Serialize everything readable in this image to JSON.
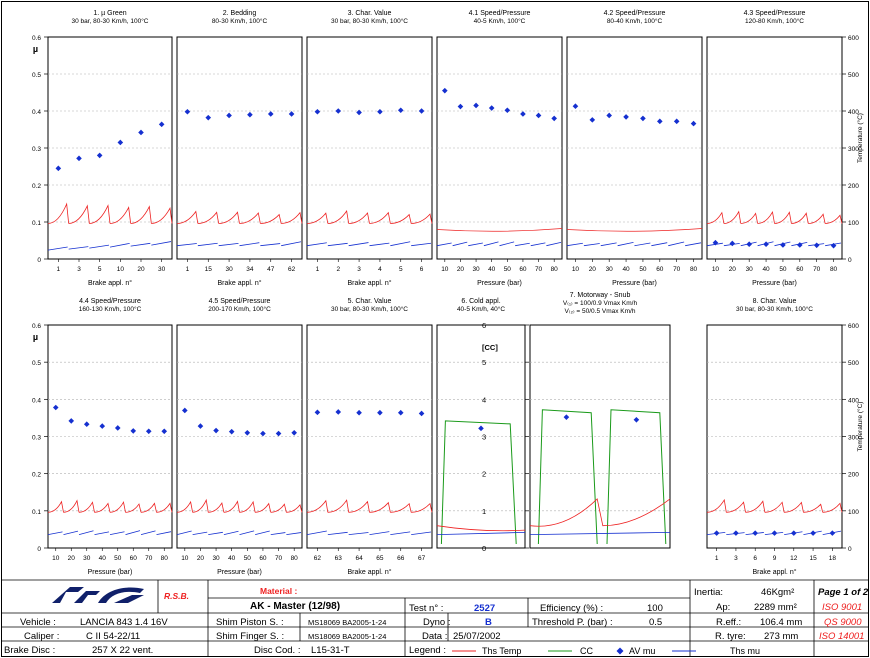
{
  "chart_data": [
    {
      "type": "scatter",
      "title": "1. µ Green",
      "subtitle": "30 bar, 80-30 Km/h, 100°C",
      "xlabel": "Brake appl. n°",
      "x_ticks": [
        "1",
        "3",
        "5",
        "10",
        "20",
        "30"
      ],
      "values": [
        0.245,
        0.272,
        0.28,
        0.315,
        0.342,
        0.364
      ]
    },
    {
      "type": "scatter",
      "title": "2. Bedding",
      "subtitle": "80-30 Km/h, 100°C",
      "xlabel": "Brake appl. n°",
      "x_ticks": [
        "1",
        "15",
        "30",
        "34",
        "47",
        "62"
      ],
      "values": [
        0.398,
        0.382,
        0.388,
        0.39,
        0.392,
        0.392
      ]
    },
    {
      "type": "scatter",
      "title": "3. Char. Value",
      "subtitle": "30 bar, 80-30 Km/h, 100°C",
      "xlabel": "Brake appl. n°",
      "x_ticks": [
        "1",
        "2",
        "3",
        "4",
        "5",
        "6"
      ],
      "values": [
        0.398,
        0.4,
        0.396,
        0.398,
        0.402,
        0.4
      ]
    },
    {
      "type": "scatter",
      "title": "4.1 Speed/Pressure",
      "subtitle": "40-5 Km/h, 100°C",
      "xlabel": "Pressure (bar)",
      "x_ticks": [
        "10",
        "20",
        "30",
        "40",
        "50",
        "60",
        "70",
        "80"
      ],
      "values": [
        0.455,
        0.412,
        0.415,
        0.408,
        0.402,
        0.392,
        0.388,
        0.38
      ]
    },
    {
      "type": "scatter",
      "title": "4.2 Speed/Pressure",
      "subtitle": "80-40 Km/h, 100°C",
      "xlabel": "Pressure (bar)",
      "x_ticks": [
        "10",
        "20",
        "30",
        "40",
        "50",
        "60",
        "70",
        "80"
      ],
      "values": [
        0.413,
        0.376,
        0.388,
        0.384,
        0.38,
        0.372,
        0.372,
        0.366
      ]
    },
    {
      "type": "scatter",
      "title": "4.3 Speed/Pressure",
      "subtitle": "120-80 Km/h, 100°C",
      "xlabel": "Pressure (bar)",
      "x_ticks": [
        "10",
        "20",
        "30",
        "40",
        "50",
        "60",
        "70",
        "80"
      ],
      "values": [
        0.044,
        0.042,
        0.04,
        0.04,
        0.038,
        0.038,
        0.037,
        0.036
      ]
    },
    {
      "type": "scatter",
      "title": "4.4 Speed/Pressure",
      "subtitle": "160-130 Km/h, 100°C",
      "xlabel": "Pressure (bar)",
      "x_ticks": [
        "10",
        "20",
        "30",
        "40",
        "50",
        "60",
        "70",
        "80"
      ],
      "values": [
        0.378,
        0.342,
        0.333,
        0.328,
        0.323,
        0.315,
        0.314,
        0.314
      ]
    },
    {
      "type": "scatter",
      "title": "4.5 Speed/Pressure",
      "subtitle": "200-170 Km/h, 100°C",
      "xlabel": "Pressure (bar)",
      "x_ticks": [
        "10",
        "20",
        "30",
        "40",
        "50",
        "60",
        "70",
        "80"
      ],
      "values": [
        0.37,
        0.328,
        0.316,
        0.313,
        0.31,
        0.308,
        0.308,
        0.31
      ]
    },
    {
      "type": "scatter",
      "title": "5. Char. Value",
      "subtitle": "30 bar, 80-30 Km/h, 100°C",
      "xlabel": "Brake appl. n°",
      "x_ticks": [
        "62",
        "63",
        "64",
        "65",
        "66",
        "67"
      ],
      "values": [
        0.365,
        0.366,
        0.364,
        0.364,
        0.364,
        0.362
      ]
    },
    {
      "type": "scatter",
      "title": "6. Cold appl.",
      "subtitle": "40-5 Km/h, 40°C",
      "xlabel": "",
      "x_ticks": [],
      "values": [
        0.322
      ]
    },
    {
      "type": "scatter",
      "title": "7. Motorway - Snub",
      "subtitle": "V₍₁₎ = 100/0.9 Vmax Km/h",
      "subtitle2": "V₍₂₎ = 50/0.5 Vmax Km/h",
      "xlabel": "",
      "x_ticks": [],
      "values": [
        0.352,
        0.345
      ]
    },
    {
      "type": "scatter",
      "title": "8. Char. Value",
      "subtitle": "30 bar, 80-30 Km/h, 100°C",
      "xlabel": "Brake appl. n°",
      "x_ticks": [
        "1",
        "3",
        "6",
        "9",
        "12",
        "15",
        "18"
      ],
      "values": [
        0.04,
        0.04,
        0.04,
        0.04,
        0.04,
        0.04,
        0.04
      ]
    }
  ],
  "axes": {
    "mu_label": "µ",
    "mu_ticks": [
      "0",
      "0.1",
      "0.2",
      "0.3",
      "0.4",
      "0.5",
      "0.6"
    ],
    "temp_label": "Temperature (°C)",
    "temp_ticks": [
      "0",
      "100",
      "200",
      "300",
      "400",
      "500",
      "600"
    ],
    "cc_label": "[CC]",
    "cc_ticks": [
      "0",
      "1",
      "2",
      "3",
      "4",
      "5",
      "6"
    ]
  },
  "colors": {
    "temp": "#ee2222",
    "cc": "#1a9a1a",
    "mu": "#1530d0",
    "ths_mu": "#1530d0"
  },
  "info": {
    "rsb": "R.S.B.",
    "material_label": "Material :",
    "material": "AK - Master  (12/98)",
    "test_no_label": "Test n° :",
    "test_no": "2527",
    "efficiency_label": "Efficiency (%) :",
    "efficiency": "100",
    "inertia_label": "Inertia:",
    "inertia": "46Kgm²",
    "page": "Page 1 of 2",
    "vehicle_label": "Vehicle :",
    "vehicle": "LANCIA 843 1.4 16V",
    "shim_piston_label": "Shim  Piston S. :",
    "shim_piston": "MS18069 BA2005-1-24",
    "dyno_label": "Dyno :",
    "dyno": "B",
    "threshold_label": "Threshold P. (bar) :",
    "threshold": "0.5",
    "ap_label": "Ap:",
    "ap": "2289 mm²",
    "iso1": "ISO 9001",
    "caliper_label": "Caliper :",
    "caliper": "C II 54-22/11",
    "shim_finger_label": "Shim  Finger S. :",
    "shim_finger": "MS18069 BA2005-1-24",
    "data_label": "Data :",
    "data": "25/07/2002",
    "reff_label": "R.eff.:",
    "reff": "106.4 mm",
    "iso2": "QS 9000",
    "disc_label": "Brake Disc :",
    "disc": "257 X 22 vent.",
    "disc_cod_label": "Disc Cod. :",
    "disc_cod": "L15-31-T",
    "rtyre_label": "R. tyre:",
    "rtyre": "273 mm",
    "iso3": "ISO 14001",
    "legend_label": "Legend :",
    "legend_temp": "Ths Temp",
    "legend_cc": "CC",
    "legend_av": "AV mu",
    "legend_ths": "Ths mu"
  }
}
